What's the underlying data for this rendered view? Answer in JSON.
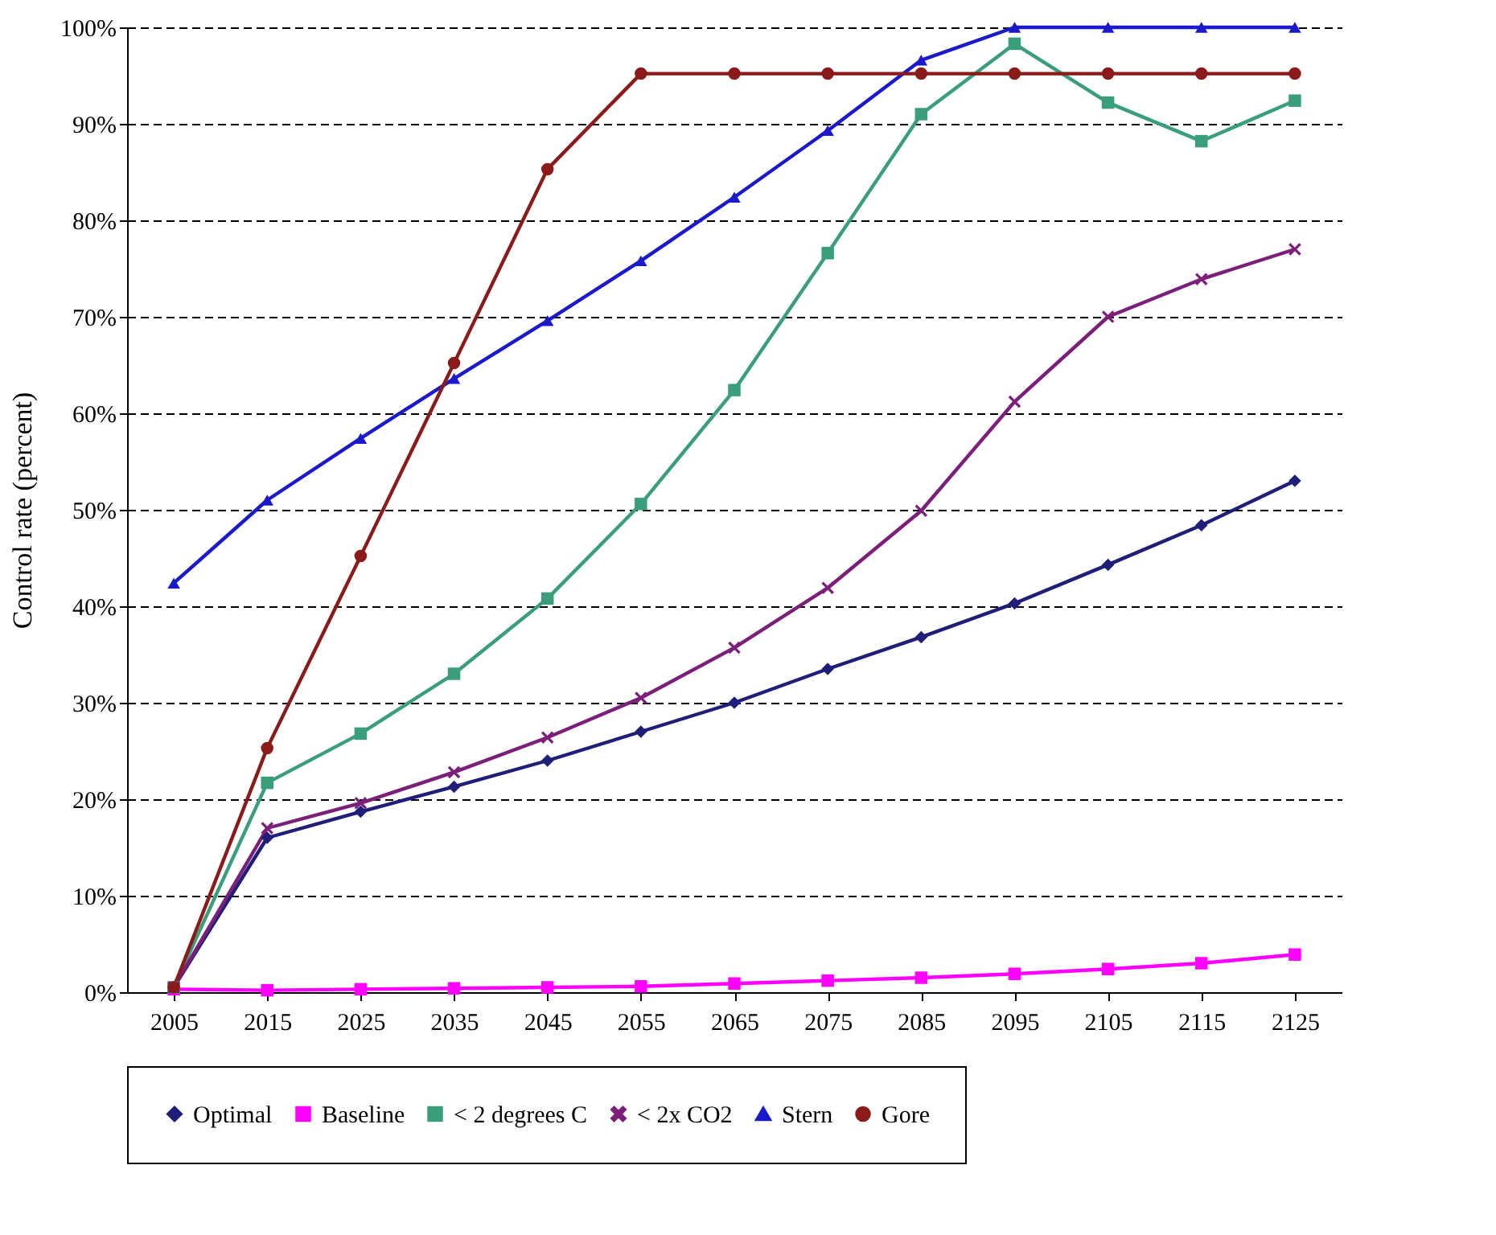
{
  "chart_data": {
    "type": "line",
    "ylabel": "Control rate (percent)",
    "categories": [
      "2005",
      "2015",
      "2025",
      "2035",
      "2045",
      "2055",
      "2065",
      "2075",
      "2085",
      "2095",
      "2105",
      "2115",
      "2125"
    ],
    "ylim": [
      0,
      100
    ],
    "yticks": [
      {
        "value": 0,
        "label": "0%"
      },
      {
        "value": 10,
        "label": "10%"
      },
      {
        "value": 20,
        "label": "20%"
      },
      {
        "value": 30,
        "label": "30%"
      },
      {
        "value": 40,
        "label": "40%"
      },
      {
        "value": 50,
        "label": "50%"
      },
      {
        "value": 60,
        "label": "60%"
      },
      {
        "value": 70,
        "label": "70%"
      },
      {
        "value": 80,
        "label": "80%"
      },
      {
        "value": 90,
        "label": "90%"
      },
      {
        "value": 100,
        "label": "100%"
      }
    ],
    "grid": "y",
    "legend": "bottom",
    "line_style": "solid",
    "series": [
      {
        "name": "Optimal",
        "color": "#1f1f7a",
        "marker": "diamond",
        "values": [
          0.5,
          16,
          18.7,
          21.3,
          24,
          27,
          30,
          33.5,
          36.8,
          40.3,
          44.3,
          48.4,
          53
        ]
      },
      {
        "name": "Baseline",
        "color": "#ff00ff",
        "marker": "square",
        "values": [
          0.3,
          0.2,
          0.3,
          0.4,
          0.5,
          0.6,
          0.9,
          1.2,
          1.5,
          1.9,
          2.4,
          3,
          3.9
        ]
      },
      {
        "name": "< 2 degrees C",
        "color": "#3a9e7a",
        "marker": "square",
        "values": [
          0.5,
          21.7,
          26.8,
          33,
          40.8,
          50.6,
          62.4,
          76.6,
          91,
          98.3,
          92.2,
          88.2,
          92.4
        ]
      },
      {
        "name": "< 2x CO2",
        "color": "#7b1f7b",
        "marker": "cross",
        "values": [
          0.5,
          17,
          19.6,
          22.8,
          26.4,
          30.5,
          35.7,
          41.9,
          49.9,
          61.2,
          70,
          73.9,
          77
        ]
      },
      {
        "name": "Stern",
        "color": "#1a1acc",
        "marker": "triangle",
        "values": [
          42.4,
          51,
          57.4,
          63.6,
          69.6,
          75.8,
          82.4,
          89.3,
          96.6,
          100,
          100,
          100,
          100
        ]
      },
      {
        "name": "Gore",
        "color": "#8b1a1a",
        "marker": "circle",
        "values": [
          0.5,
          25.3,
          45.2,
          65.2,
          85.3,
          95.2,
          95.2,
          95.2,
          95.2,
          95.2,
          95.2,
          95.2,
          95.2
        ]
      }
    ]
  }
}
